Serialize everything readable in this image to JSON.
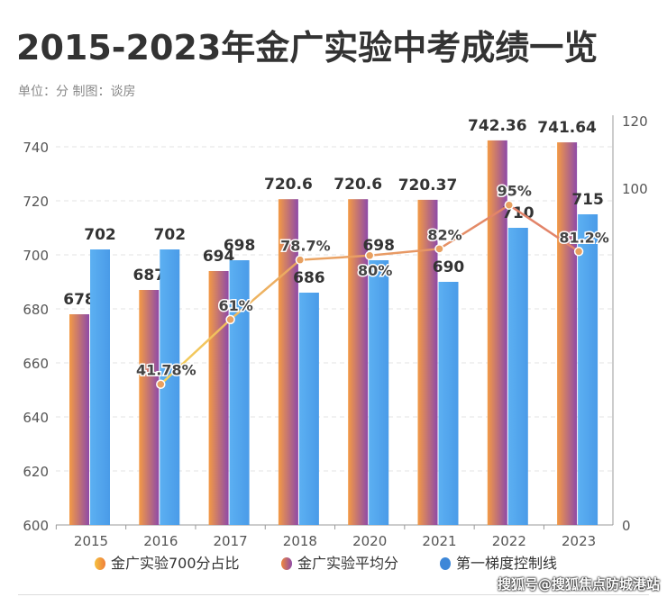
{
  "title": "2015-2023年金广实验中考成绩一览",
  "subtitle": "单位：分 制图：谈房",
  "watermark": "搜狐号@搜狐焦点防城港站",
  "colors": {
    "avg_top": "#f08a3c",
    "avg_bottom": "#8e4aa8",
    "line": "#f3b85a",
    "line2": "#e58a6a",
    "blue": "#56a8ee"
  },
  "chart_data": {
    "type": "bar",
    "categories": [
      "2015",
      "2016",
      "2017",
      "2018",
      "2020",
      "2021",
      "2022",
      "2023"
    ],
    "series": [
      {
        "name": "金广实验平均分",
        "type": "bar",
        "axis": "left",
        "values": [
          678,
          687,
          694,
          720.6,
          720.6,
          720.37,
          742.36,
          741.64
        ],
        "labels": [
          "678",
          "687",
          "694",
          "720.6",
          "720.6",
          "720.37",
          "742.36",
          "741.64"
        ]
      },
      {
        "name": "第一梯度控制线",
        "type": "bar",
        "axis": "left",
        "values": [
          702,
          702,
          698,
          686,
          698,
          690,
          710,
          715
        ],
        "labels": [
          "702",
          "702",
          "698",
          "686",
          "698",
          "690",
          "710",
          "715"
        ]
      },
      {
        "name": "金广实验700分占比",
        "type": "line",
        "axis": "right",
        "values": [
          null,
          41.78,
          61,
          78.7,
          80,
          82,
          95,
          81.2
        ],
        "labels": [
          "",
          "41.78%",
          "61%",
          "78.7%",
          "80%",
          "82%",
          "95%",
          "81.2%"
        ]
      }
    ],
    "y_left": {
      "range": [
        600,
        750
      ],
      "ticks": [
        "600",
        "620",
        "640",
        "660",
        "680",
        "700",
        "720",
        "740"
      ]
    },
    "y_right": {
      "range": [
        0,
        120
      ],
      "ticks": [
        "0",
        "100",
        "120"
      ]
    },
    "legend": [
      "金广实验700分占比",
      "金广实验平均分",
      "第一梯度控制线"
    ],
    "legend_position": "bottom",
    "grid": true
  }
}
